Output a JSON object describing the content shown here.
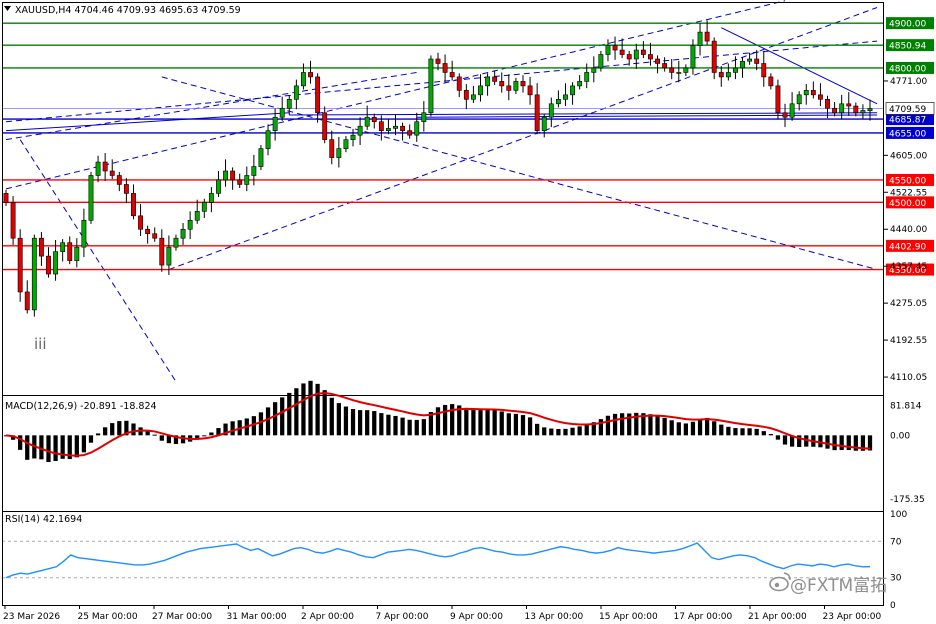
{
  "header": {
    "symbol_text": "XAUUSD,H4  4704.46 4709.93 4695.63 4709.59",
    "arrow_icon": "triangle-down-icon"
  },
  "price_panel": {
    "ylim": [
      4070,
      4945
    ],
    "ticks": [
      "4771.00",
      "4605.00",
      "4522.55",
      "4440.00",
      "4357.45",
      "4275.05",
      "4192.55",
      "4110.05"
    ],
    "tick_values": [
      4771.0,
      4605.0,
      4522.55,
      4440.0,
      4357.45,
      4275.05,
      4192.55,
      4110.05
    ],
    "wave_label": "iii",
    "current_price": {
      "label": "4709.59",
      "value": 4709.59
    },
    "levels": [
      {
        "label": "4900.00",
        "value": 4900.0,
        "color": "#008000",
        "tag_bg": "#008000",
        "tag_fg": "#ffffff"
      },
      {
        "label": "4850.94",
        "value": 4850.94,
        "color": "#008000",
        "tag_bg": "#008000",
        "tag_fg": "#ffffff"
      },
      {
        "label": "4800.00",
        "value": 4800.0,
        "color": "#008000",
        "tag_bg": "#008000",
        "tag_fg": "#ffffff"
      },
      {
        "label": "4685.87",
        "value": 4685.87,
        "color": "#0000cc",
        "tag_bg": "#0000cc",
        "tag_fg": "#ffffff"
      },
      {
        "label": "4655.00",
        "value": 4655.0,
        "color": "#0000cc",
        "tag_bg": "#0000cc",
        "tag_fg": "#ffffff"
      },
      {
        "label": "4550.00",
        "value": 4550.0,
        "color": "#ff0000",
        "tag_bg": "#ff0000",
        "tag_fg": "#ffffff"
      },
      {
        "label": "4500.00",
        "value": 4500.0,
        "color": "#ff0000",
        "tag_bg": "#ff0000",
        "tag_fg": "#ffffff"
      },
      {
        "label": "4402.90",
        "value": 4402.9,
        "color": "#ff0000",
        "tag_bg": "#ff0000",
        "tag_fg": "#ffffff"
      },
      {
        "label": "4350.00",
        "value": 4350.0,
        "color": "#ff0000",
        "tag_bg": "#ff0000",
        "tag_fg": "#ffffff"
      }
    ]
  },
  "macd_panel": {
    "title": "MACD(12,26,9) -20.891 -18.824",
    "ticks": [
      "81.814",
      "0.00",
      "-175.35"
    ],
    "tick_values": [
      81.814,
      0,
      -175.35
    ],
    "ylim": [
      -200,
      100
    ]
  },
  "rsi_panel": {
    "title": "RSI(14) 42.1694",
    "ticks": [
      "100",
      "70",
      "30",
      "0"
    ],
    "tick_values": [
      100,
      70,
      30,
      0
    ]
  },
  "x_axis": {
    "labels": [
      "23 Mar 2026",
      "25 Mar 00:00",
      "27 Mar 00:00",
      "31 Mar 00:00",
      "2 Apr 00:00",
      "7 Apr 00:00",
      "9 Apr 00:00",
      "13 Apr 00:00",
      "15 Apr 00:00",
      "17 Apr 00:00",
      "21 Apr 00:00",
      "23 Apr 00:00"
    ]
  },
  "watermark": {
    "text": "@FXTM富拓",
    "icon": "weibo-icon"
  },
  "colors": {
    "up": "#00aa00",
    "down": "#e00000",
    "wick": "#000000",
    "signal": "#e00000",
    "rsi": "#1e90ff",
    "trend": "#0000cc"
  },
  "chart_data": {
    "type": "candlestick",
    "symbol": "XAUUSD",
    "timeframe": "H4",
    "last": {
      "open": 4704.46,
      "high": 4709.93,
      "low": 4695.63,
      "close": 4709.59
    },
    "x_categories": [
      "23 Mar 2026",
      "25 Mar 00:00",
      "27 Mar 00:00",
      "31 Mar 00:00",
      "2 Apr 00:00",
      "7 Apr 00:00",
      "9 Apr 00:00",
      "13 Apr 00:00",
      "15 Apr 00:00",
      "17 Apr 00:00",
      "21 Apr 00:00",
      "23 Apr 00:00"
    ],
    "closes": [
      4500,
      4420,
      4300,
      4260,
      4420,
      4380,
      4340,
      4390,
      4410,
      4370,
      4400,
      4460,
      4560,
      4590,
      4570,
      4560,
      4540,
      4520,
      4470,
      4440,
      4430,
      4420,
      4360,
      4400,
      4420,
      4440,
      4460,
      4480,
      4500,
      4520,
      4550,
      4570,
      4550,
      4540,
      4560,
      4580,
      4620,
      4660,
      4690,
      4710,
      4730,
      4760,
      4790,
      4780,
      4700,
      4640,
      4600,
      4620,
      4640,
      4650,
      4670,
      4690,
      4680,
      4660,
      4665,
      4670,
      4660,
      4650,
      4680,
      4700,
      4820,
      4810,
      4790,
      4780,
      4750,
      4730,
      4740,
      4760,
      4780,
      4770,
      4760,
      4750,
      4770,
      4760,
      4740,
      4660,
      4690,
      4720,
      4730,
      4740,
      4760,
      4770,
      4790,
      4800,
      4830,
      4850,
      4840,
      4830,
      4820,
      4840,
      4830,
      4820,
      4810,
      4800,
      4790,
      4790,
      4800,
      4850,
      4880,
      4860,
      4790,
      4780,
      4790,
      4800,
      4815,
      4820,
      4810,
      4780,
      4760,
      4700,
      4690,
      4720,
      4740,
      4750,
      4740,
      4730,
      4710,
      4700,
      4720,
      4715,
      4700,
      4705,
      4709.59
    ],
    "rsi": [
      30,
      33,
      35,
      34,
      36,
      38,
      40,
      42,
      48,
      55,
      52,
      51,
      50,
      49,
      48,
      47,
      46,
      45,
      44,
      44,
      45,
      47,
      49,
      52,
      55,
      58,
      60,
      62,
      63,
      64,
      65,
      66,
      67,
      63,
      60,
      62,
      58,
      54,
      56,
      59,
      62,
      63,
      61,
      58,
      57,
      59,
      62,
      60,
      58,
      55,
      53,
      52,
      55,
      58,
      59,
      60,
      61,
      60,
      58,
      56,
      54,
      53,
      54,
      57,
      59,
      62,
      63,
      61,
      59,
      58,
      56,
      55,
      55,
      56,
      58,
      60,
      62,
      64,
      63,
      61,
      60,
      58,
      57,
      58,
      60,
      63,
      61,
      60,
      59,
      58,
      57,
      58,
      59,
      60,
      62,
      65,
      68,
      60,
      52,
      50,
      52,
      54,
      55,
      54,
      52,
      48,
      45,
      42,
      40,
      43,
      45,
      44,
      43,
      45,
      44,
      42,
      44,
      45,
      43,
      42,
      42.17
    ]
  }
}
